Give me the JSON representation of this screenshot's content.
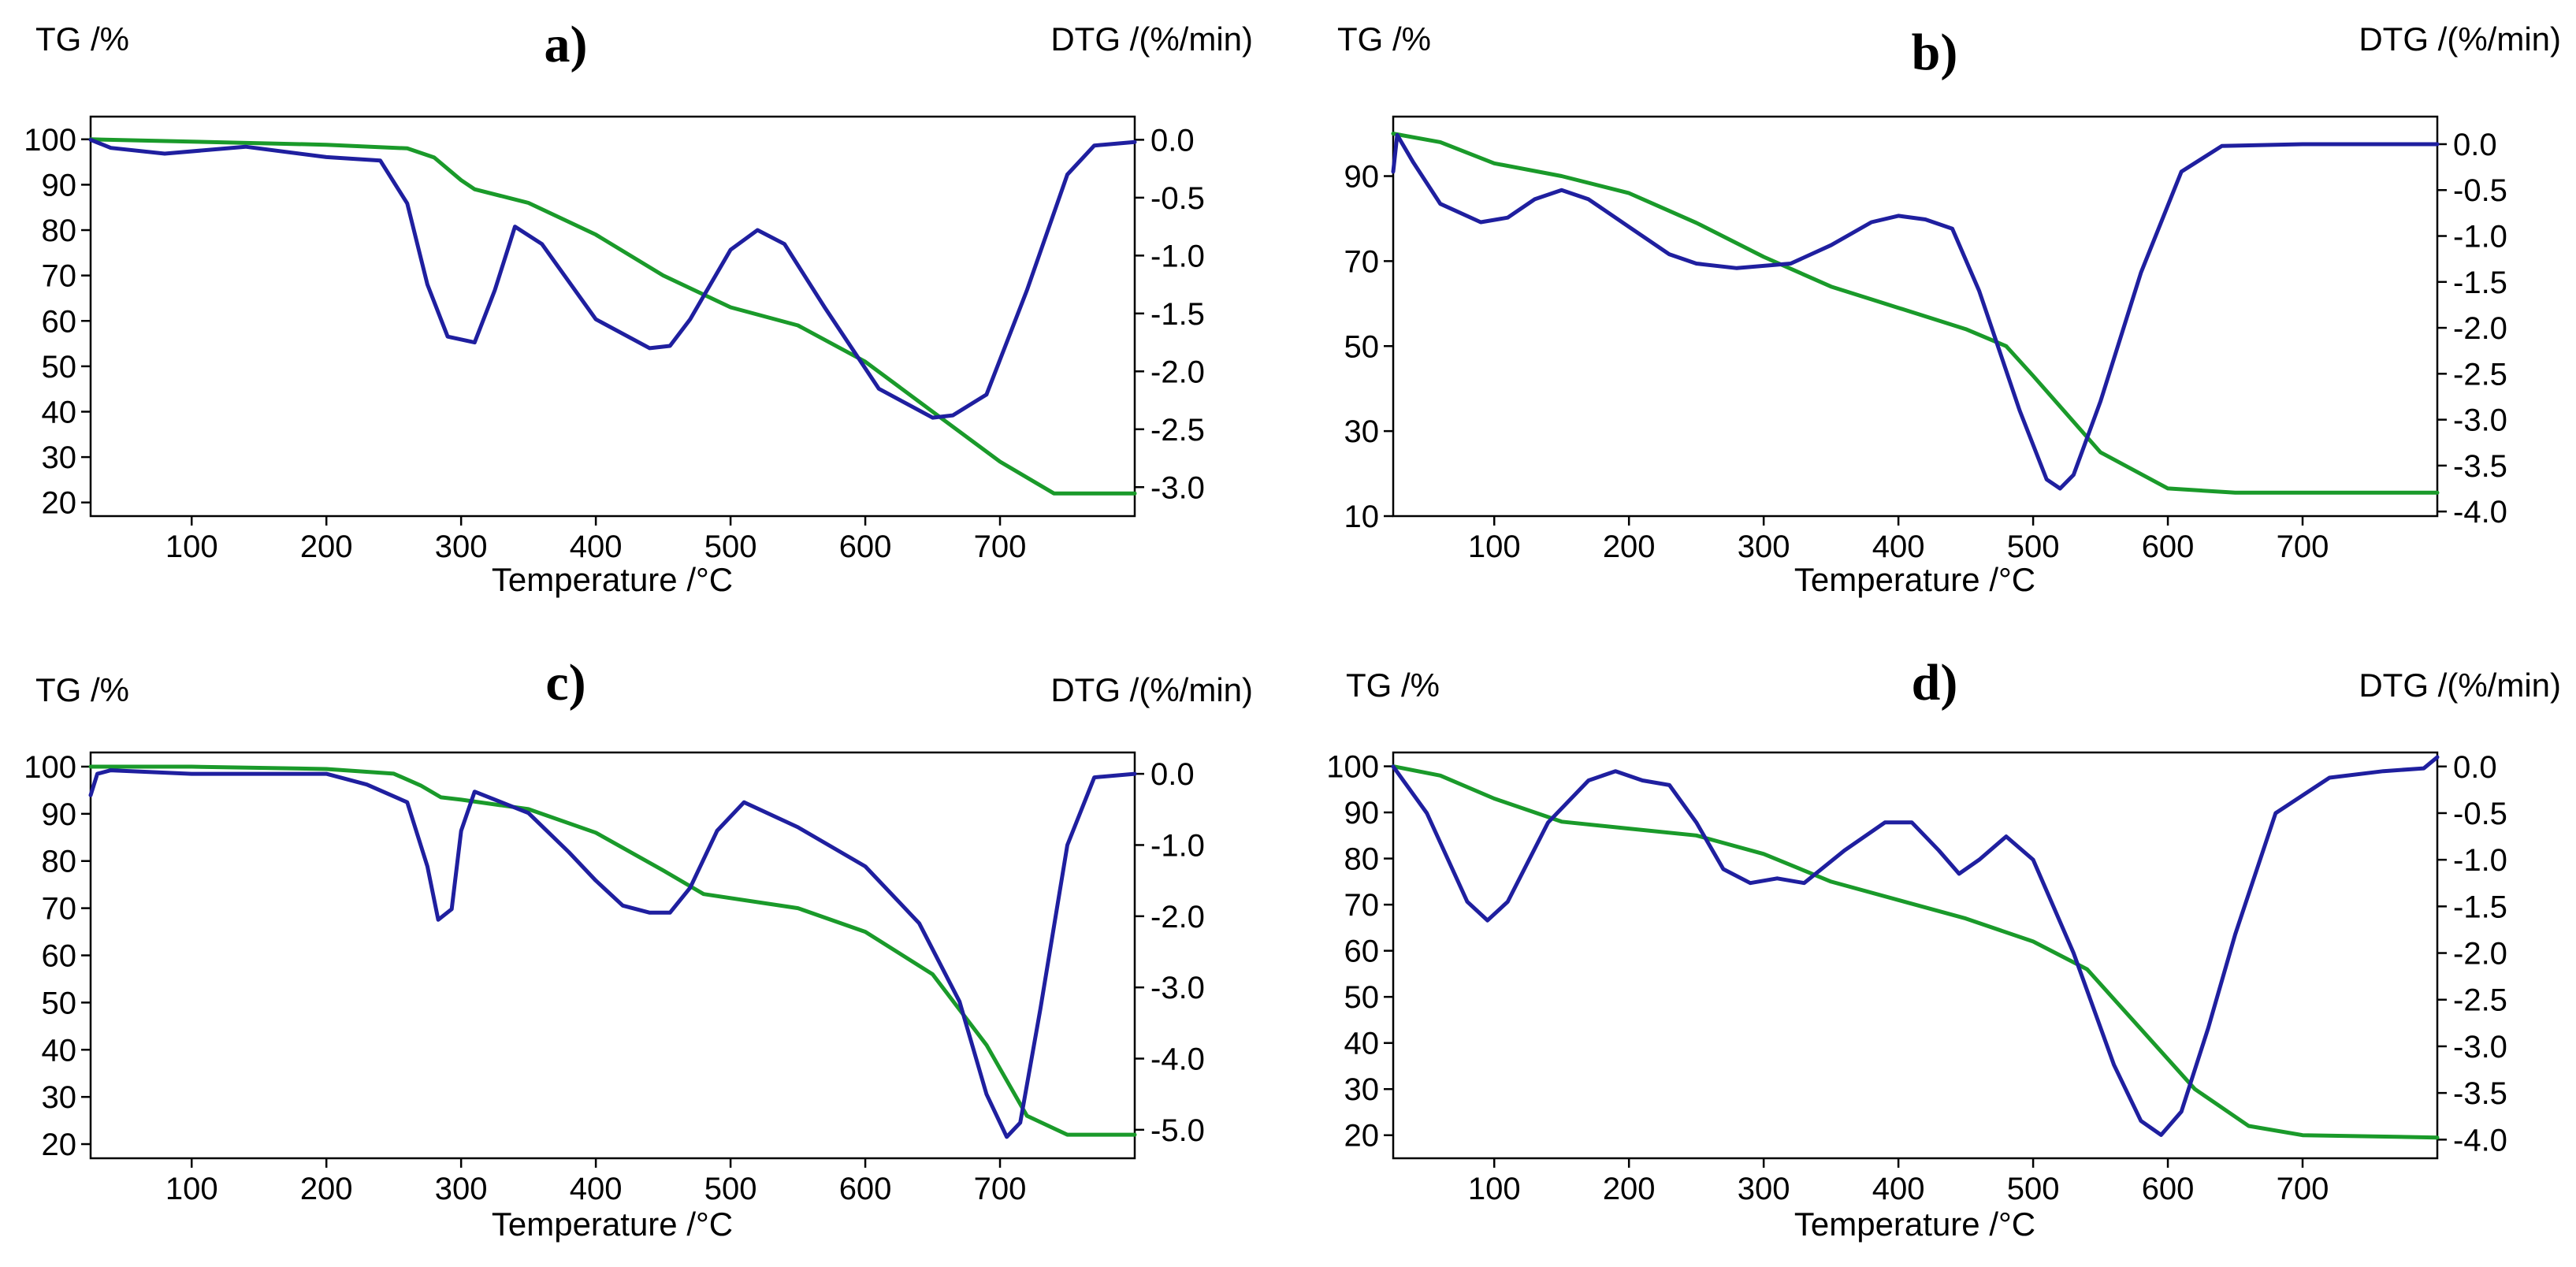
{
  "colors": {
    "tg": "#1a9a2a",
    "dtg": "#1f1f9f"
  },
  "chart_data": [
    {
      "type": "line",
      "label": "a)",
      "title": "",
      "xlabel": "Temperature /°C",
      "ylabel": "TG /%",
      "ylabel_right": "DTG /(%/min)",
      "xlim": [
        25,
        800
      ],
      "ylim": [
        17,
        105
      ],
      "ylim_right": [
        -3.25,
        0.2
      ],
      "xticks": [
        100,
        200,
        300,
        400,
        500,
        600,
        700
      ],
      "yticks": [
        20,
        30,
        40,
        50,
        60,
        70,
        80,
        90,
        100
      ],
      "yticks_right": [
        0.0,
        -0.5,
        -1.0,
        -1.5,
        -2.0,
        -2.5,
        -3.0
      ],
      "grid": false,
      "series": [
        {
          "axis": "left",
          "color": "tg",
          "x": [
            25,
            100,
            200,
            260,
            280,
            300,
            310,
            350,
            400,
            450,
            500,
            550,
            600,
            650,
            700,
            740,
            800
          ],
          "y": [
            100,
            99.5,
            98.8,
            98,
            96,
            91,
            89,
            86,
            79,
            70,
            63,
            59,
            51,
            40,
            29,
            22,
            22
          ]
        },
        {
          "axis": "right",
          "color": "dtg",
          "x": [
            25,
            40,
            80,
            140,
            200,
            240,
            260,
            275,
            290,
            310,
            325,
            340,
            360,
            400,
            440,
            455,
            470,
            500,
            520,
            540,
            570,
            610,
            650,
            665,
            690,
            720,
            750,
            770,
            800
          ],
          "y": [
            0.0,
            -0.07,
            -0.12,
            -0.06,
            -0.15,
            -0.18,
            -0.55,
            -1.25,
            -1.7,
            -1.75,
            -1.3,
            -0.75,
            -0.9,
            -1.55,
            -1.8,
            -1.78,
            -1.55,
            -0.95,
            -0.78,
            -0.9,
            -1.45,
            -2.15,
            -2.4,
            -2.38,
            -2.2,
            -1.3,
            -0.3,
            -0.05,
            -0.02
          ]
        }
      ]
    },
    {
      "type": "line",
      "label": "b)",
      "title": "",
      "xlabel": "Temperature /°C",
      "ylabel": "TG /%",
      "ylabel_right": "DTG /(%/min)",
      "xlim": [
        25,
        800
      ],
      "ylim": [
        10,
        104
      ],
      "ylim_right": [
        -4.05,
        0.3
      ],
      "xticks": [
        100,
        200,
        300,
        400,
        500,
        600,
        700
      ],
      "yticks": [
        10,
        30,
        50,
        70,
        90
      ],
      "yticks_right": [
        0.0,
        -0.5,
        -1.0,
        -1.5,
        -2.0,
        -2.5,
        -3.0,
        -3.5,
        -4.0
      ],
      "grid": false,
      "series": [
        {
          "axis": "left",
          "color": "tg",
          "x": [
            25,
            60,
            100,
            150,
            200,
            250,
            300,
            350,
            400,
            450,
            480,
            500,
            550,
            600,
            650,
            800
          ],
          "y": [
            100,
            98,
            93,
            90,
            86,
            79,
            71,
            64,
            59,
            54,
            50,
            43,
            25,
            16.5,
            15.5,
            15.5
          ]
        },
        {
          "axis": "right",
          "color": "dtg",
          "x": [
            25,
            28,
            40,
            60,
            90,
            110,
            130,
            150,
            170,
            200,
            230,
            250,
            280,
            320,
            350,
            380,
            400,
            420,
            440,
            460,
            490,
            510,
            520,
            530,
            550,
            580,
            610,
            640,
            700,
            800
          ],
          "y": [
            -0.3,
            0.1,
            -0.2,
            -0.65,
            -0.85,
            -0.8,
            -0.6,
            -0.5,
            -0.6,
            -0.9,
            -1.2,
            -1.3,
            -1.35,
            -1.3,
            -1.1,
            -0.85,
            -0.78,
            -0.82,
            -0.92,
            -1.6,
            -2.9,
            -3.65,
            -3.75,
            -3.6,
            -2.8,
            -1.4,
            -0.3,
            -0.02,
            0.0,
            0.0
          ]
        }
      ]
    },
    {
      "type": "line",
      "label": "c)",
      "title": "",
      "xlabel": "Temperature /°C",
      "ylabel": "TG /%",
      "ylabel_right": "DTG /(%/min)",
      "xlim": [
        25,
        800
      ],
      "ylim": [
        17,
        103
      ],
      "ylim_right": [
        -5.4,
        0.3
      ],
      "xticks": [
        100,
        200,
        300,
        400,
        500,
        600,
        700
      ],
      "yticks": [
        20,
        30,
        40,
        50,
        60,
        70,
        80,
        90,
        100
      ],
      "yticks_right": [
        0.0,
        -1.0,
        -2.0,
        -3.0,
        -4.0,
        -5.0
      ],
      "grid": false,
      "series": [
        {
          "axis": "left",
          "color": "tg",
          "x": [
            25,
            100,
            200,
            250,
            270,
            285,
            300,
            350,
            400,
            450,
            480,
            550,
            600,
            650,
            690,
            720,
            750,
            800
          ],
          "y": [
            100,
            100,
            99.5,
            98.5,
            96,
            93.5,
            93,
            91,
            86,
            78,
            73,
            70,
            65,
            56,
            41,
            26,
            22,
            22
          ]
        },
        {
          "axis": "right",
          "color": "dtg",
          "x": [
            25,
            30,
            40,
            100,
            200,
            230,
            260,
            275,
            283,
            293,
            300,
            310,
            350,
            380,
            400,
            420,
            440,
            455,
            470,
            490,
            510,
            550,
            600,
            640,
            670,
            690,
            705,
            715,
            730,
            750,
            770,
            800
          ],
          "y": [
            -0.3,
            0.0,
            0.05,
            0.0,
            0.0,
            -0.15,
            -0.4,
            -1.3,
            -2.05,
            -1.9,
            -0.8,
            -0.25,
            -0.55,
            -1.1,
            -1.5,
            -1.85,
            -1.95,
            -1.95,
            -1.6,
            -0.8,
            -0.4,
            -0.75,
            -1.3,
            -2.1,
            -3.2,
            -4.5,
            -5.1,
            -4.9,
            -3.3,
            -1.0,
            -0.05,
            0.0
          ]
        }
      ]
    },
    {
      "type": "line",
      "label": "d)",
      "title": "",
      "xlabel": "Temperature /°C",
      "ylabel": "TG /%",
      "ylabel_right": "DTG /(%/min)",
      "xlim": [
        25,
        800
      ],
      "ylim": [
        15,
        103
      ],
      "ylim_right": [
        -4.2,
        0.15
      ],
      "xticks": [
        100,
        200,
        300,
        400,
        500,
        600,
        700
      ],
      "yticks": [
        20,
        30,
        40,
        50,
        60,
        70,
        80,
        90,
        100
      ],
      "yticks_right": [
        0.0,
        -0.5,
        -1.0,
        -1.5,
        -2.0,
        -2.5,
        -3.0,
        -3.5,
        -4.0
      ],
      "grid": false,
      "series": [
        {
          "axis": "left",
          "color": "tg",
          "x": [
            25,
            60,
            100,
            150,
            200,
            250,
            300,
            350,
            400,
            450,
            500,
            540,
            580,
            620,
            660,
            700,
            800
          ],
          "y": [
            100,
            98,
            93,
            88,
            86.5,
            85,
            81,
            75,
            71,
            67,
            62,
            56,
            43,
            30,
            22,
            20,
            19.5
          ]
        },
        {
          "axis": "right",
          "color": "dtg",
          "x": [
            25,
            50,
            80,
            95,
            110,
            140,
            170,
            190,
            210,
            230,
            250,
            270,
            290,
            310,
            330,
            360,
            390,
            410,
            430,
            445,
            460,
            480,
            500,
            530,
            560,
            580,
            595,
            610,
            630,
            650,
            680,
            720,
            760,
            790,
            800
          ],
          "y": [
            0.0,
            -0.5,
            -1.45,
            -1.65,
            -1.45,
            -0.6,
            -0.15,
            -0.05,
            -0.15,
            -0.2,
            -0.6,
            -1.1,
            -1.25,
            -1.2,
            -1.25,
            -0.9,
            -0.6,
            -0.6,
            -0.9,
            -1.15,
            -1.0,
            -0.75,
            -1.0,
            -2.0,
            -3.2,
            -3.8,
            -3.95,
            -3.7,
            -2.8,
            -1.8,
            -0.5,
            -0.12,
            -0.05,
            -0.02,
            0.1
          ]
        }
      ]
    }
  ]
}
